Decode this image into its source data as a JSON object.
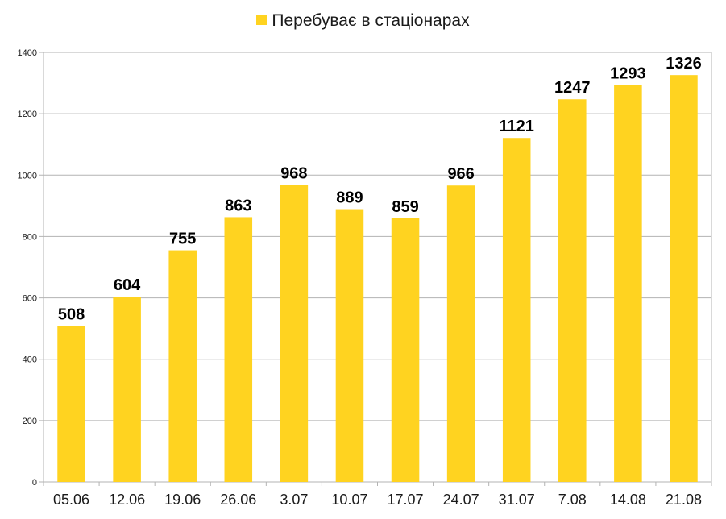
{
  "chart_data": {
    "type": "bar",
    "categories": [
      "05.06",
      "12.06",
      "19.06",
      "26.06",
      "3.07",
      "10.07",
      "17.07",
      "24.07",
      "31.07",
      "7.08",
      "14.08",
      "21.08"
    ],
    "series": [
      {
        "name": "Перебуває в стаціонарах",
        "values": [
          508,
          604,
          755,
          863,
          968,
          889,
          859,
          966,
          1121,
          1247,
          1293,
          1326
        ]
      }
    ],
    "yticks": [
      "0",
      "200",
      "400",
      "600",
      "800",
      "1000",
      "1200",
      "1400"
    ],
    "ylim": [
      0,
      1400
    ],
    "grid": true,
    "legend_position": "top",
    "bar_color": "#FFD320",
    "grid_color": "#b3b3b3"
  }
}
